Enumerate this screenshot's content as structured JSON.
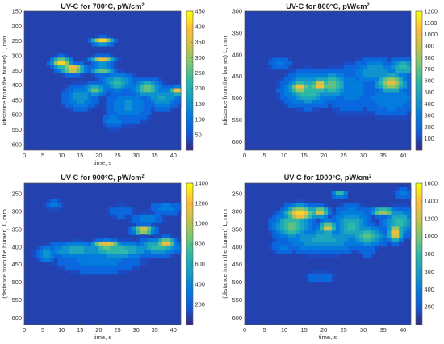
{
  "chart_data": [
    {
      "type": "heatmap",
      "title": "UV-C for 700°C, pW/cm",
      "title_sup": "2",
      "xlabel": "time, s",
      "ylabel": "(distance from the burner) L, mm",
      "xlim": [
        0,
        42
      ],
      "ylim": [
        150,
        620
      ],
      "y_reversed": true,
      "xticks": [
        0,
        5,
        10,
        15,
        20,
        25,
        30,
        35,
        40
      ],
      "yticks": [
        150,
        200,
        250,
        300,
        350,
        400,
        450,
        500,
        550,
        600
      ],
      "colorbar": {
        "min": 0,
        "max": 450,
        "ticks": [
          50,
          100,
          150,
          200,
          250,
          300,
          350,
          400,
          450
        ]
      },
      "hotspots": [
        {
          "x": 21,
          "y": 250,
          "value": 430,
          "sx": 1.8,
          "sy": 7
        },
        {
          "x": 10,
          "y": 325,
          "value": 430,
          "sx": 1.6,
          "sy": 12
        },
        {
          "x": 13,
          "y": 345,
          "value": 420,
          "sx": 2.2,
          "sy": 10
        },
        {
          "x": 21,
          "y": 315,
          "value": 380,
          "sx": 2.0,
          "sy": 8
        },
        {
          "x": 21,
          "y": 350,
          "value": 280,
          "sx": 2.0,
          "sy": 9
        },
        {
          "x": 19,
          "y": 415,
          "value": 240,
          "sx": 2.0,
          "sy": 15
        },
        {
          "x": 25,
          "y": 390,
          "value": 200,
          "sx": 3.0,
          "sy": 20
        },
        {
          "x": 33,
          "y": 410,
          "value": 250,
          "sx": 2.5,
          "sy": 20
        },
        {
          "x": 41,
          "y": 420,
          "value": 380,
          "sx": 1.5,
          "sy": 9
        },
        {
          "x": 37,
          "y": 445,
          "value": 160,
          "sx": 3.0,
          "sy": 25
        },
        {
          "x": 15,
          "y": 440,
          "value": 140,
          "sx": 3.0,
          "sy": 30
        },
        {
          "x": 28,
          "y": 470,
          "value": 120,
          "sx": 4.0,
          "sy": 40
        },
        {
          "x": 24,
          "y": 520,
          "value": 100,
          "sx": 2.0,
          "sy": 20
        }
      ]
    },
    {
      "type": "heatmap",
      "title": "UV-C for 800°C, pW/cm",
      "title_sup": "2",
      "xlabel": "",
      "ylabel": "(distance from the burner) L, mm",
      "xlim": [
        0,
        42
      ],
      "ylim": [
        300,
        620
      ],
      "y_reversed": true,
      "xticks": [
        0,
        5,
        10,
        15,
        20,
        25,
        30,
        35,
        40
      ],
      "yticks": [
        300,
        350,
        400,
        450,
        500,
        550,
        600
      ],
      "colorbar": {
        "min": 0,
        "max": 1200,
        "ticks": [
          100,
          200,
          300,
          400,
          500,
          600,
          700,
          800,
          900,
          1000,
          1100,
          1200
        ]
      },
      "hotspots": [
        {
          "x": 19,
          "y": 470,
          "value": 1050,
          "sx": 1.5,
          "sy": 12
        },
        {
          "x": 14,
          "y": 475,
          "value": 950,
          "sx": 1.8,
          "sy": 10
        },
        {
          "x": 16,
          "y": 480,
          "value": 600,
          "sx": 4.0,
          "sy": 25
        },
        {
          "x": 22,
          "y": 470,
          "value": 700,
          "sx": 2.5,
          "sy": 20
        },
        {
          "x": 37,
          "y": 465,
          "value": 950,
          "sx": 2.5,
          "sy": 15
        },
        {
          "x": 40,
          "y": 430,
          "value": 600,
          "sx": 2.5,
          "sy": 12
        },
        {
          "x": 33,
          "y": 440,
          "value": 400,
          "sx": 4.0,
          "sy": 20
        },
        {
          "x": 27,
          "y": 480,
          "value": 250,
          "sx": 5.0,
          "sy": 40
        },
        {
          "x": 9,
          "y": 420,
          "value": 220,
          "sx": 2.0,
          "sy": 12
        },
        {
          "x": 37,
          "y": 500,
          "value": 300,
          "sx": 5.0,
          "sy": 30
        }
      ]
    },
    {
      "type": "heatmap",
      "title": "UV-C for 900°C, pW/cm",
      "title_sup": "2",
      "xlabel": "time, s",
      "ylabel": "(distance from the burner) L, mm",
      "xlim": [
        0,
        42
      ],
      "ylim": [
        220,
        620
      ],
      "y_reversed": true,
      "xticks": [
        0,
        5,
        10,
        15,
        20,
        25,
        30,
        35,
        40
      ],
      "yticks": [
        250,
        300,
        350,
        400,
        450,
        500,
        550,
        600
      ],
      "colorbar": {
        "min": 0,
        "max": 1400,
        "ticks": [
          200,
          400,
          600,
          800,
          1000,
          1200,
          1400
        ]
      },
      "hotspots": [
        {
          "x": 22,
          "y": 395,
          "value": 1250,
          "sx": 2.5,
          "sy": 8
        },
        {
          "x": 32,
          "y": 352,
          "value": 1250,
          "sx": 1.8,
          "sy": 8
        },
        {
          "x": 38,
          "y": 390,
          "value": 1200,
          "sx": 1.5,
          "sy": 10
        },
        {
          "x": 25,
          "y": 410,
          "value": 700,
          "sx": 6.0,
          "sy": 15
        },
        {
          "x": 14,
          "y": 410,
          "value": 550,
          "sx": 5.0,
          "sy": 15
        },
        {
          "x": 36,
          "y": 400,
          "value": 650,
          "sx": 4.0,
          "sy": 15
        },
        {
          "x": 33,
          "y": 320,
          "value": 300,
          "sx": 3.0,
          "sy": 12
        },
        {
          "x": 38,
          "y": 290,
          "value": 320,
          "sx": 3.0,
          "sy": 12
        },
        {
          "x": 6,
          "y": 420,
          "value": 450,
          "sx": 2.0,
          "sy": 15
        },
        {
          "x": 8,
          "y": 280,
          "value": 250,
          "sx": 2.0,
          "sy": 10
        },
        {
          "x": 26,
          "y": 300,
          "value": 200,
          "sx": 3.0,
          "sy": 15
        },
        {
          "x": 20,
          "y": 440,
          "value": 300,
          "sx": 8.0,
          "sy": 25
        }
      ]
    },
    {
      "type": "heatmap",
      "title": "UV-C for 1000°C, pW/cm",
      "title_sup": "2",
      "xlabel": "time, s",
      "ylabel": "(distance from the burner) L, mm",
      "xlim": [
        0,
        42
      ],
      "ylim": [
        220,
        620
      ],
      "y_reversed": true,
      "xticks": [
        0,
        5,
        10,
        15,
        20,
        25,
        30,
        35,
        40
      ],
      "yticks": [
        250,
        300,
        350,
        400,
        450,
        500,
        550,
        600
      ],
      "colorbar": {
        "min": 0,
        "max": 1600,
        "ticks": [
          200,
          400,
          600,
          800,
          1000,
          1200,
          1400,
          1600
        ]
      },
      "hotspots": [
        {
          "x": 14,
          "y": 305,
          "value": 1500,
          "sx": 2.5,
          "sy": 15
        },
        {
          "x": 19,
          "y": 300,
          "value": 1300,
          "sx": 1.5,
          "sy": 10
        },
        {
          "x": 21,
          "y": 345,
          "value": 1250,
          "sx": 1.5,
          "sy": 12
        },
        {
          "x": 12,
          "y": 340,
          "value": 900,
          "sx": 3.0,
          "sy": 25
        },
        {
          "x": 24,
          "y": 250,
          "value": 900,
          "sx": 1.2,
          "sy": 6
        },
        {
          "x": 38,
          "y": 360,
          "value": 1400,
          "sx": 1.2,
          "sy": 18
        },
        {
          "x": 35,
          "y": 300,
          "value": 1200,
          "sx": 2.0,
          "sy": 8
        },
        {
          "x": 39,
          "y": 330,
          "value": 800,
          "sx": 2.5,
          "sy": 25
        },
        {
          "x": 31,
          "y": 370,
          "value": 900,
          "sx": 3.0,
          "sy": 18
        },
        {
          "x": 27,
          "y": 340,
          "value": 700,
          "sx": 3.0,
          "sy": 35
        },
        {
          "x": 20,
          "y": 380,
          "value": 600,
          "sx": 7.0,
          "sy": 25
        },
        {
          "x": 10,
          "y": 400,
          "value": 300,
          "sx": 2.5,
          "sy": 15
        },
        {
          "x": 31,
          "y": 410,
          "value": 260,
          "sx": 1.5,
          "sy": 15
        },
        {
          "x": 19,
          "y": 485,
          "value": 280,
          "sx": 2.5,
          "sy": 12
        },
        {
          "x": 40,
          "y": 250,
          "value": 400,
          "sx": 1.5,
          "sy": 10
        }
      ]
    }
  ]
}
